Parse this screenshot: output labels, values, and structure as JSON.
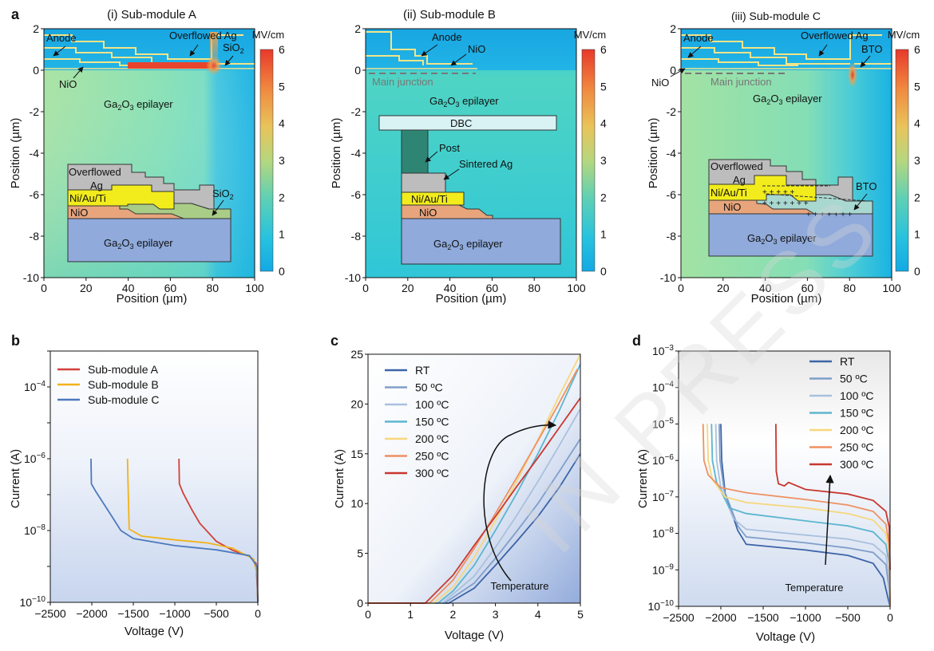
{
  "panel_letters": [
    "a",
    "b",
    "c",
    "d"
  ],
  "colorbar": {
    "unit": "MV/cm",
    "ticks": [
      "6",
      "5",
      "4",
      "3",
      "2",
      "1",
      "0"
    ]
  },
  "watermark": "IN PRESS",
  "chart_data": [
    {
      "type": "heatmap",
      "panel": "a(i)",
      "title": "(i) Sub-module A",
      "xlabel": "Position (µm)",
      "ylabel": "Position (µm)",
      "xlim": [
        0,
        100
      ],
      "ylim": [
        -10,
        2
      ],
      "xticks": [
        "0",
        "20",
        "40",
        "60",
        "80",
        "100"
      ],
      "yticks": [
        "2",
        "0",
        "-2",
        "-4",
        "-6",
        "-8",
        "-10"
      ],
      "field_unit": "MV/cm",
      "field_range": [
        0,
        6
      ],
      "annotations": [
        "Anode",
        "Overflowed Ag",
        "SiO2",
        "NiO",
        "Ga2O3 epilayer"
      ],
      "inset_labels": [
        "Overflowed",
        "Ag",
        "Ni/Au/Ti",
        "NiO",
        "SiO2",
        "Ga2O3 epilayer"
      ]
    },
    {
      "type": "heatmap",
      "panel": "a(ii)",
      "title": "(ii) Sub-module B",
      "xlabel": "Position (µm)",
      "ylabel": "Position (µm)",
      "xlim": [
        0,
        100
      ],
      "ylim": [
        -10,
        2
      ],
      "xticks": [
        "0",
        "20",
        "40",
        "60",
        "80",
        "100"
      ],
      "yticks": [
        "2",
        "0",
        "-2",
        "-4",
        "-6",
        "-8",
        "-10"
      ],
      "field_unit": "MV/cm",
      "field_range": [
        0,
        6
      ],
      "annotations": [
        "Anode",
        "NiO",
        "Main junction",
        "Ga2O3 epilayer"
      ],
      "inset_labels": [
        "DBC",
        "Post",
        "Sintered Ag",
        "Ni/Au/Ti",
        "NiO",
        "Ga2O3 epilayer"
      ]
    },
    {
      "type": "heatmap",
      "panel": "a(iii)",
      "title": "(iii) Sub-module C",
      "xlabel": "Position (µm)",
      "ylabel": "Position (µm)",
      "xlim": [
        0,
        100
      ],
      "ylim": [
        -10,
        2
      ],
      "xticks": [
        "0",
        "20",
        "40",
        "60",
        "80",
        "100"
      ],
      "yticks": [
        "2",
        "0",
        "-2",
        "-4",
        "-6",
        "-8",
        "-10"
      ],
      "field_unit": "MV/cm",
      "field_range": [
        0,
        6
      ],
      "annotations": [
        "Anode",
        "Overflowed Ag",
        "BTO",
        "NiO",
        "Main junction",
        "Ga2O3 epilayer"
      ],
      "inset_labels": [
        "Overflowed",
        "Ag",
        "Ni/Au/Ti",
        "NiO",
        "BTO",
        "Ga2O3 epilayer"
      ]
    },
    {
      "type": "line",
      "panel": "b",
      "xlabel": "Voltage (V)",
      "ylabel": "Current (A)",
      "xlim": [
        -2500,
        0
      ],
      "ylim": [
        1e-10,
        0.001
      ],
      "yscale": "log",
      "xticks": [
        "−2500",
        "−2000",
        "−1500",
        "−1000",
        "−500",
        "0"
      ],
      "series": [
        {
          "name": "Sub-module A",
          "color": "#d1403a",
          "points": [
            [
              -950,
              1e-06
            ],
            [
              -945,
              2e-07
            ],
            [
              -900,
              1.1e-07
            ],
            [
              -800,
              4e-08
            ],
            [
              -700,
              1.6e-08
            ],
            [
              -500,
              5e-09
            ],
            [
              -300,
              2.8e-09
            ],
            [
              -100,
              1.9e-09
            ],
            [
              -20,
              1.2e-09
            ],
            [
              -5,
              2e-10
            ],
            [
              0,
              1e-10
            ]
          ]
        },
        {
          "name": "Sub-module B",
          "color": "#f2b21a",
          "points": [
            [
              -1570,
              1e-06
            ],
            [
              -1565,
              3e-07
            ],
            [
              -1550,
              1.1e-08
            ],
            [
              -1400,
              7e-09
            ],
            [
              -1000,
              5.5e-09
            ],
            [
              -600,
              4.5e-09
            ],
            [
              -300,
              3.2e-09
            ],
            [
              -50,
              1.6e-09
            ],
            [
              -10,
              6e-10
            ],
            [
              0,
              1e-10
            ]
          ]
        },
        {
          "name": "Sub-module C",
          "color": "#4d79bd",
          "points": [
            [
              -2010,
              1e-06
            ],
            [
              -2005,
              2e-07
            ],
            [
              -1950,
              1.2e-07
            ],
            [
              -1800,
              3.5e-08
            ],
            [
              -1650,
              1e-08
            ],
            [
              -1500,
              6e-09
            ],
            [
              -1000,
              3.8e-09
            ],
            [
              -500,
              2.9e-09
            ],
            [
              -100,
              2e-09
            ],
            [
              -10,
              1e-09
            ],
            [
              0,
              1e-10
            ]
          ]
        }
      ]
    },
    {
      "type": "line",
      "panel": "c",
      "xlabel": "Voltage (V)",
      "ylabel": "Current (A)",
      "xlim": [
        0,
        5
      ],
      "ylim": [
        0,
        25
      ],
      "xticks": [
        "0",
        "1",
        "2",
        "3",
        "4",
        "5"
      ],
      "yticks": [
        "0",
        "5",
        "10",
        "15",
        "20",
        "25"
      ],
      "annotation": "Temperature",
      "series": [
        {
          "name": "RT",
          "color": "#3d64a8",
          "points": [
            [
              0,
              0
            ],
            [
              1.9,
              0
            ],
            [
              2.5,
              1.5
            ],
            [
              3,
              3.8
            ],
            [
              3.5,
              6.2
            ],
            [
              4,
              8.7
            ],
            [
              4.5,
              11.6
            ],
            [
              5,
              15
            ]
          ]
        },
        {
          "name": "50 ºC",
          "color": "#7f9ec9",
          "points": [
            [
              0,
              0
            ],
            [
              1.8,
              0
            ],
            [
              2.5,
              2
            ],
            [
              3,
              4.5
            ],
            [
              3.5,
              7.2
            ],
            [
              4,
              10
            ],
            [
              4.5,
              13.2
            ],
            [
              5,
              16.5
            ]
          ]
        },
        {
          "name": "100 ºC",
          "color": "#a9c0dd",
          "points": [
            [
              0,
              0
            ],
            [
              1.75,
              0
            ],
            [
              2.5,
              2.7
            ],
            [
              3,
              5.6
            ],
            [
              3.5,
              8.8
            ],
            [
              4,
              12.2
            ],
            [
              4.5,
              15.8
            ],
            [
              5,
              19.5
            ]
          ]
        },
        {
          "name": "150 ºC",
          "color": "#5cb6cf",
          "points": [
            [
              0,
              0
            ],
            [
              1.65,
              0
            ],
            [
              2,
              1.2
            ],
            [
              2.5,
              3.8
            ],
            [
              3,
              7.3
            ],
            [
              3.5,
              11
            ],
            [
              4,
              15
            ],
            [
              4.5,
              19.3
            ],
            [
              5,
              24
            ]
          ]
        },
        {
          "name": "200 ºC",
          "color": "#f6d77c",
          "points": [
            [
              0,
              0
            ],
            [
              1.55,
              0
            ],
            [
              2,
              1.6
            ],
            [
              2.5,
              4.6
            ],
            [
              3,
              8.3
            ],
            [
              3.5,
              12.2
            ],
            [
              4,
              16.4
            ],
            [
              4.5,
              20.8
            ],
            [
              5,
              25
            ]
          ]
        },
        {
          "name": "250 ºC",
          "color": "#ef9060",
          "points": [
            [
              0,
              0
            ],
            [
              1.45,
              0
            ],
            [
              2,
              2.3
            ],
            [
              2.5,
              5.5
            ],
            [
              3,
              9
            ],
            [
              3.5,
              12.6
            ],
            [
              4,
              16.3
            ],
            [
              4.5,
              20.1
            ],
            [
              4.93,
              23.5
            ]
          ]
        },
        {
          "name": "300 ºC",
          "color": "#c8372e",
          "points": [
            [
              0,
              0
            ],
            [
              1.35,
              0
            ],
            [
              2,
              2.8
            ],
            [
              2.5,
              5.8
            ],
            [
              3,
              8.7
            ],
            [
              3.5,
              11.7
            ],
            [
              4,
              14.6
            ],
            [
              4.5,
              17.6
            ],
            [
              5,
              20.6
            ]
          ]
        }
      ]
    },
    {
      "type": "line",
      "panel": "d",
      "xlabel": "Voltage (V)",
      "ylabel": "Current (A)",
      "xlim": [
        -2500,
        0
      ],
      "ylim": [
        1e-10,
        0.001
      ],
      "yscale": "log",
      "xticks": [
        "−2500",
        "−2000",
        "−1500",
        "−1000",
        "−500",
        "0"
      ],
      "annotation": "Temperature",
      "series": [
        {
          "name": "RT",
          "color": "#3d64a8",
          "points": [
            [
              -2000,
              1e-05
            ],
            [
              -1990,
              1e-06
            ],
            [
              -1950,
              1.3e-07
            ],
            [
              -1800,
              1.2e-08
            ],
            [
              -1700,
              5e-09
            ],
            [
              -1000,
              3.5e-09
            ],
            [
              -500,
              2.5e-09
            ],
            [
              -200,
              1.5e-09
            ],
            [
              -80,
              6e-10
            ],
            [
              -20,
              1.5e-10
            ],
            [
              0,
              1e-10
            ]
          ]
        },
        {
          "name": "50 ºC",
          "color": "#7f9ec9",
          "points": [
            [
              -2020,
              1e-05
            ],
            [
              -2010,
              1e-06
            ],
            [
              -1960,
              1.5e-07
            ],
            [
              -1800,
              1.6e-08
            ],
            [
              -1700,
              8e-09
            ],
            [
              -1000,
              5.5e-09
            ],
            [
              -500,
              4e-09
            ],
            [
              -200,
              3e-09
            ],
            [
              -50,
              1.4e-09
            ],
            [
              -10,
              3e-10
            ],
            [
              0,
              1e-10
            ]
          ]
        },
        {
          "name": "100 ºC",
          "color": "#a9c0dd",
          "points": [
            [
              -2060,
              1e-05
            ],
            [
              -2050,
              1e-06
            ],
            [
              -2000,
              1.8e-07
            ],
            [
              -1850,
              2.5e-08
            ],
            [
              -1700,
              1.3e-08
            ],
            [
              -1000,
              9e-09
            ],
            [
              -500,
              7e-09
            ],
            [
              -200,
              5e-09
            ],
            [
              -50,
              2.5e-09
            ],
            [
              -10,
              6e-10
            ],
            [
              0,
              1e-10
            ]
          ]
        },
        {
          "name": "150 ºC",
          "color": "#5cb6cf",
          "points": [
            [
              -2110,
              1e-05
            ],
            [
              -2100,
              1e-06
            ],
            [
              -2050,
              2.5e-07
            ],
            [
              -1900,
              5e-08
            ],
            [
              -1700,
              3.5e-08
            ],
            [
              -1000,
              2.2e-08
            ],
            [
              -500,
              1.6e-08
            ],
            [
              -200,
              1.1e-08
            ],
            [
              -50,
              5e-09
            ],
            [
              -10,
              1.5e-09
            ],
            [
              0,
              1e-10
            ]
          ]
        },
        {
          "name": "200 ºC",
          "color": "#f6d77c",
          "points": [
            [
              -2160,
              1e-05
            ],
            [
              -2150,
              1e-06
            ],
            [
              -2100,
              3e-07
            ],
            [
              -1950,
              1e-07
            ],
            [
              -1700,
              7e-08
            ],
            [
              -1000,
              5e-08
            ],
            [
              -500,
              3.5e-08
            ],
            [
              -200,
              2.3e-08
            ],
            [
              -50,
              1e-08
            ],
            [
              -10,
              3e-09
            ],
            [
              0,
              1e-10
            ]
          ]
        },
        {
          "name": "250 ºC",
          "color": "#ef9060",
          "points": [
            [
              -2210,
              1e-05
            ],
            [
              -2200,
              1e-06
            ],
            [
              -2150,
              4e-07
            ],
            [
              -2000,
              1.8e-07
            ],
            [
              -1700,
              1.3e-07
            ],
            [
              -1000,
              8.5e-08
            ],
            [
              -500,
              6e-08
            ],
            [
              -200,
              4e-08
            ],
            [
              -50,
              1.8e-08
            ],
            [
              -10,
              5e-09
            ],
            [
              0,
              1e-10
            ]
          ]
        },
        {
          "name": "300 ºC",
          "color": "#c8372e",
          "points": [
            [
              -1350,
              1e-05
            ],
            [
              -1345,
              5e-07
            ],
            [
              -1320,
              2.3e-07
            ],
            [
              -1250,
              2e-07
            ],
            [
              -1200,
              2.5e-07
            ],
            [
              -1000,
              1.6e-07
            ],
            [
              -500,
              1.2e-07
            ],
            [
              -200,
              8e-08
            ],
            [
              -50,
              4e-08
            ],
            [
              -10,
              1.5e-08
            ],
            [
              0,
              1e-09
            ]
          ]
        }
      ]
    }
  ]
}
